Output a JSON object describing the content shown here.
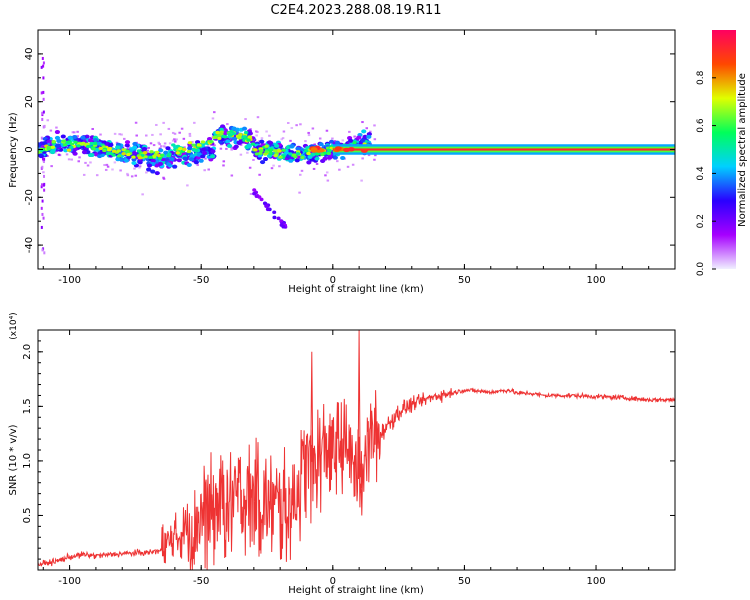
{
  "title": "C2E4.2023.288.08.19.R11",
  "chart_data": [
    {
      "type": "heatmap",
      "title": "",
      "xlabel": "Height of straight line (km)",
      "ylabel": "Frequency (Hz)",
      "xlim": [
        -112,
        130
      ],
      "ylim": [
        -50,
        50
      ],
      "xticks": [
        "-100",
        "-50",
        "0",
        "50",
        "100"
      ],
      "xtick_values": [
        -100,
        -50,
        0,
        50,
        100
      ],
      "yticks": [
        "-40",
        "-20",
        "0",
        "20",
        "40"
      ],
      "ytick_values": [
        -40,
        -20,
        0,
        20,
        40
      ],
      "colorbar": {
        "label": "Normalized spectral amplitude",
        "range": [
          0,
          1
        ],
        "ticks": [
          "0.0",
          "0.2",
          "0.4",
          "0.6",
          "0.8"
        ],
        "tick_values": [
          0.0,
          0.2,
          0.4,
          0.6,
          0.8
        ],
        "colors": [
          "#f0f0ff",
          "#a600ff",
          "#2a00ff",
          "#00d0ff",
          "#00ff5a",
          "#e0ff00",
          "#ff4800",
          "#ff0060"
        ]
      },
      "features": [
        {
          "name": "scattered signal band",
          "x_range": [
            -112,
            15
          ],
          "freq_center": 0,
          "freq_spread": 10
        },
        {
          "name": "steady tone",
          "x_range": [
            0,
            130
          ],
          "freq": 0,
          "amplitude": 0.95
        },
        {
          "name": "descending streak",
          "x_range": [
            -30,
            -18
          ],
          "freq_range": [
            -18,
            -32
          ]
        }
      ]
    },
    {
      "type": "line",
      "title": "",
      "xlabel": "Height of straight line (km)",
      "ylabel": "SNR (10 * v/v)",
      "y_multiplier": "(x10⁴)",
      "xlim": [
        -112,
        130
      ],
      "ylim": [
        0,
        2.2
      ],
      "xticks": [
        "-100",
        "-50",
        "0",
        "50",
        "100"
      ],
      "xtick_values": [
        -100,
        -50,
        0,
        50,
        100
      ],
      "yticks": [
        "0.5",
        "1.0",
        "1.5",
        "2.0"
      ],
      "ytick_values": [
        0.5,
        1.0,
        1.5,
        2.0
      ],
      "series": [
        {
          "name": "SNR",
          "color": "#ee3333",
          "x": [
            -112,
            -105,
            -100,
            -95,
            -90,
            -80,
            -70,
            -65,
            -60,
            -55,
            -50,
            -45,
            -40,
            -35,
            -30,
            -25,
            -20,
            -15,
            -12,
            -10,
            -8,
            -5,
            -2,
            0,
            5,
            10,
            12,
            15,
            20,
            25,
            30,
            35,
            40,
            45,
            50,
            55,
            60,
            67,
            70,
            75,
            80,
            90,
            100,
            110,
            120,
            130
          ],
          "y": [
            0.05,
            0.08,
            0.12,
            0.14,
            0.13,
            0.15,
            0.16,
            0.18,
            0.28,
            0.4,
            0.5,
            0.55,
            0.6,
            0.65,
            0.68,
            0.6,
            0.55,
            0.65,
            0.8,
            1.0,
            0.95,
            1.05,
            1.1,
            1.12,
            1.15,
            0.85,
            1.1,
            1.2,
            1.3,
            1.45,
            1.52,
            1.56,
            1.6,
            1.62,
            1.65,
            1.64,
            1.63,
            1.65,
            1.62,
            1.62,
            1.6,
            1.6,
            1.59,
            1.58,
            1.56,
            1.56
          ]
        }
      ],
      "spikes": [
        {
          "x": -8,
          "y": 2.0
        },
        {
          "x": 10,
          "y": 2.2
        },
        {
          "x": 11,
          "y": 0.5
        }
      ]
    }
  ]
}
